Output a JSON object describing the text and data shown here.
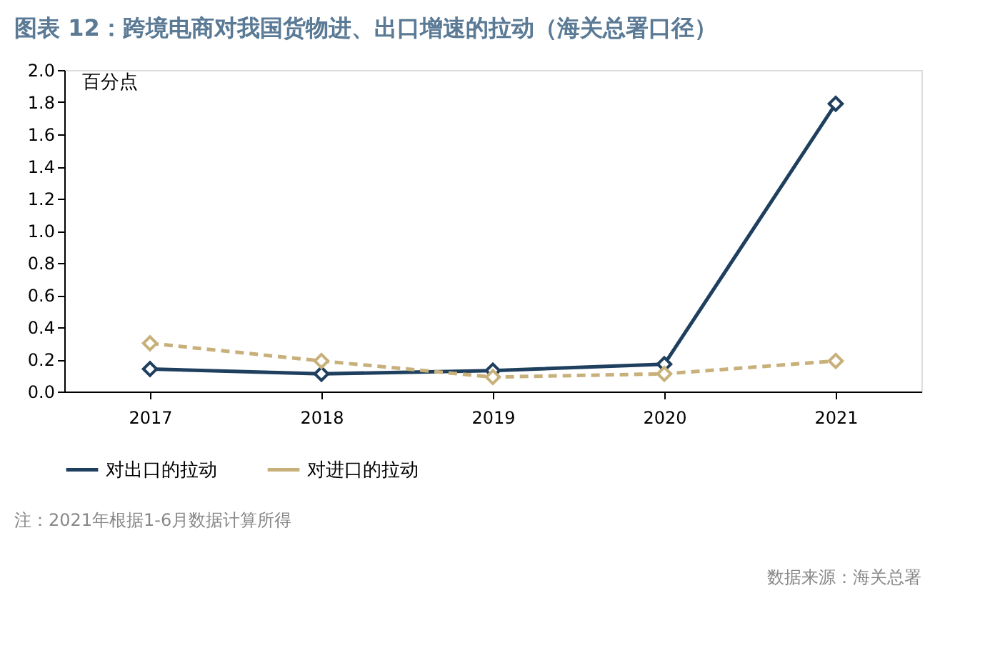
{
  "chart_data": {
    "type": "line",
    "title": "图表 12：跨境电商对我国货物进、出口增速的拉动（海关总署口径）",
    "ylabel": "百分点",
    "categories": [
      "2017",
      "2018",
      "2019",
      "2020",
      "2021"
    ],
    "series": [
      {
        "name": "对出口的拉动",
        "color": "#1f3f5f",
        "values": [
          0.14,
          0.11,
          0.13,
          0.17,
          1.79
        ],
        "line_style": "solid"
      },
      {
        "name": "对进口的拉动",
        "color": "#c8b07a",
        "values": [
          0.3,
          0.19,
          0.09,
          0.11,
          0.19
        ],
        "line_style": "dashed"
      }
    ],
    "ylim": [
      0,
      2.0
    ],
    "yticks": [
      {
        "value": 0,
        "label": "0.0"
      },
      0.2,
      0.4,
      0.6,
      0.8,
      {
        "value": 1,
        "label": "1.0"
      },
      1.2,
      1.4,
      1.6,
      1.8,
      {
        "value": 2,
        "label": "2.0"
      }
    ],
    "grid": false,
    "legend": "bottom",
    "marker": "diamond",
    "annotations": [
      "注：2021年根据1-6月数据计算所得",
      "数据来源：海关总署"
    ]
  }
}
